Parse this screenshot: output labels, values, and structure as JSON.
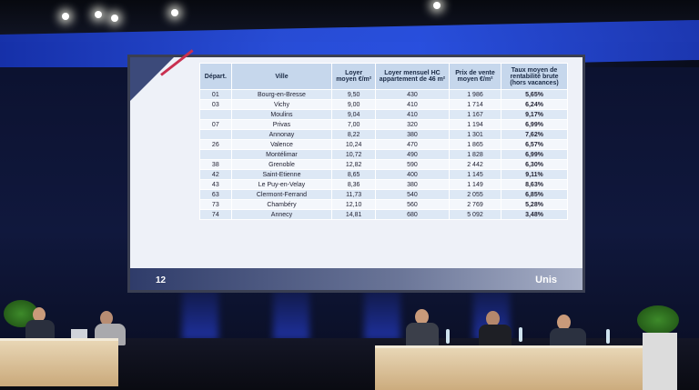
{
  "table": {
    "headers": [
      "Départ.",
      "Ville",
      "Loyer moyen €/m²",
      "Loyer mensuel HC appartement de 46 m²",
      "Prix de vente moyen €/m²",
      "Taux moyen de rentabilité brute (hors vacances)"
    ],
    "rows": [
      [
        "01",
        "Bourg-en-Bresse",
        "9,50",
        "430",
        "1 986",
        "5,65%"
      ],
      [
        "03",
        "Vichy",
        "9,00",
        "410",
        "1 714",
        "6,24%"
      ],
      [
        "",
        "Moulins",
        "9,04",
        "410",
        "1 167",
        "9,17%"
      ],
      [
        "07",
        "Privas",
        "7,00",
        "320",
        "1 194",
        "6,99%"
      ],
      [
        "",
        "Annonay",
        "8,22",
        "380",
        "1 301",
        "7,62%"
      ],
      [
        "26",
        "Valence",
        "10,24",
        "470",
        "1 865",
        "6,57%"
      ],
      [
        "",
        "Montélimar",
        "10,72",
        "490",
        "1 828",
        "6,99%"
      ],
      [
        "38",
        "Grenoble",
        "12,82",
        "590",
        "2 442",
        "6,30%"
      ],
      [
        "42",
        "Saint-Etienne",
        "8,65",
        "400",
        "1 145",
        "9,11%"
      ],
      [
        "43",
        "Le Puy-en-Velay",
        "8,36",
        "380",
        "1 149",
        "8,63%"
      ],
      [
        "63",
        "Clermont-Ferrand",
        "11,73",
        "540",
        "2 055",
        "6,85%"
      ],
      [
        "73",
        "Chambéry",
        "12,10",
        "560",
        "2 769",
        "5,28%"
      ],
      [
        "74",
        "Annecy",
        "14,81",
        "680",
        "5 092",
        "3,48%"
      ]
    ]
  },
  "slide": {
    "page_number": "12",
    "logo_text": "Unis"
  }
}
